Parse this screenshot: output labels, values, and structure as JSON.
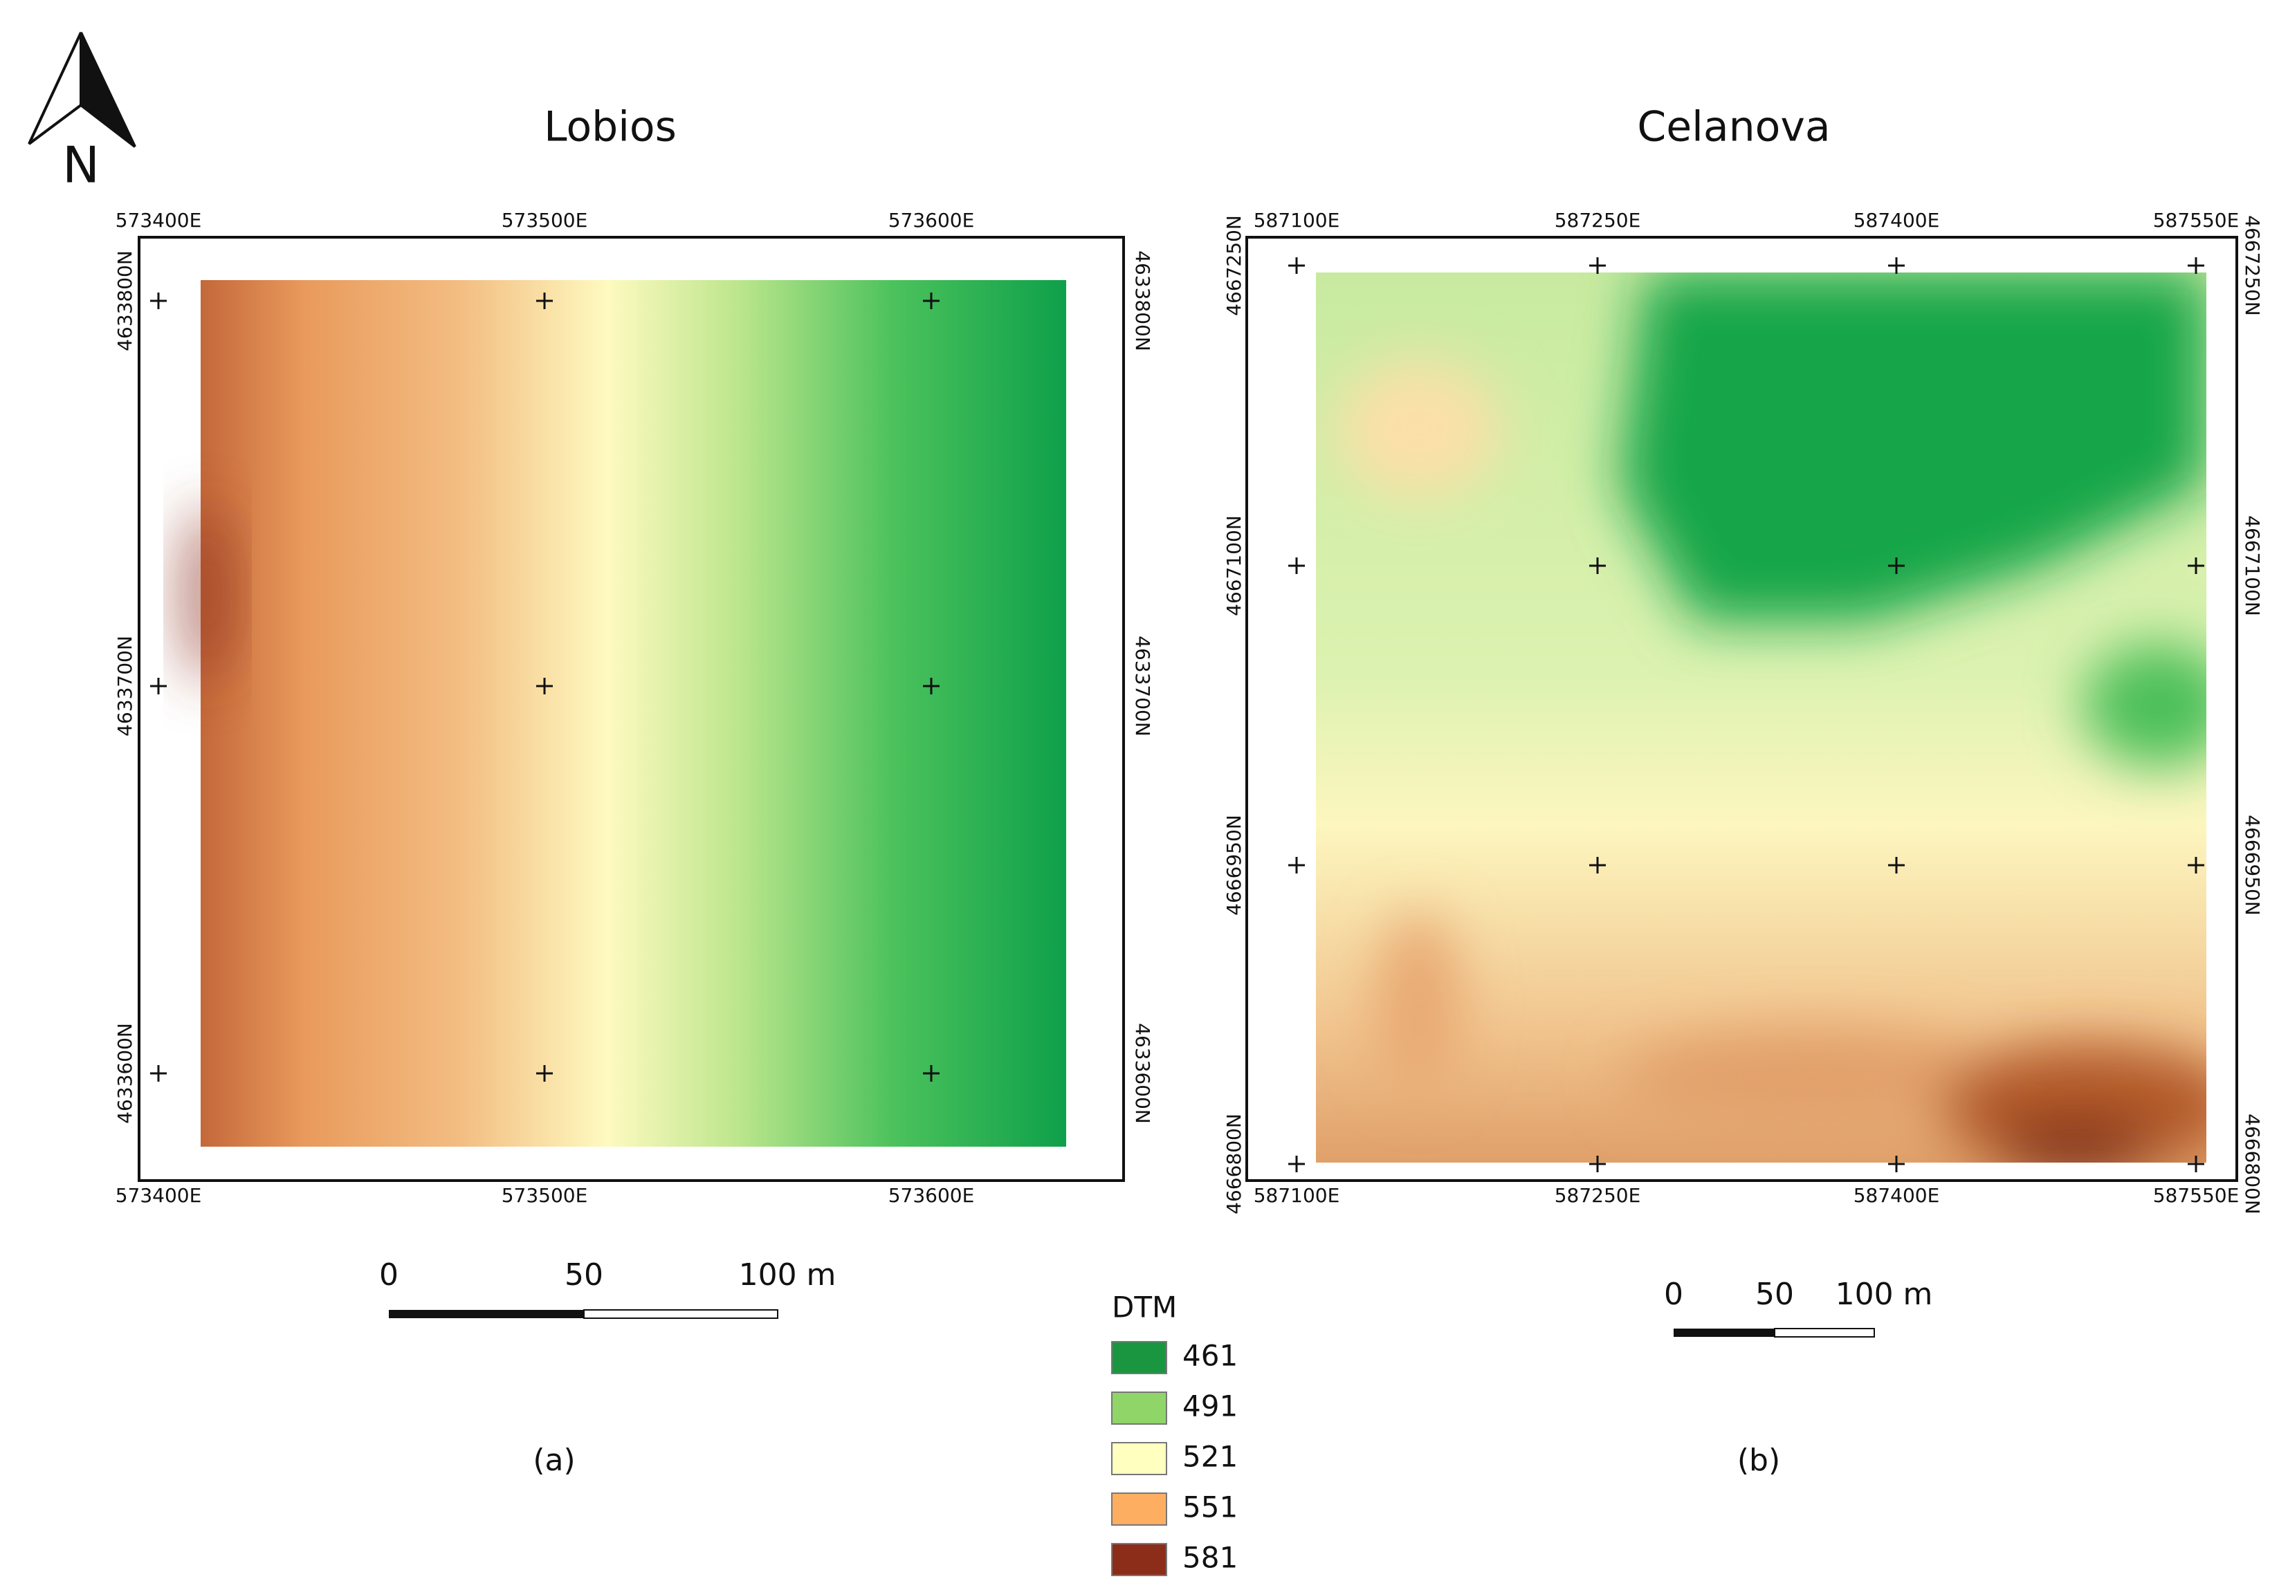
{
  "north_arrow": {
    "label": "N"
  },
  "panels": [
    {
      "title": "Lobios",
      "caption": "(a)",
      "x_labels": [
        "573400E",
        "573500E",
        "573600E"
      ],
      "y_labels": [
        "4633800N",
        "4633700N",
        "4633600N"
      ],
      "scale_bar": [
        "0",
        "50",
        "100 m"
      ]
    },
    {
      "title": "Celanova",
      "caption": "(b)",
      "x_labels": [
        "587100E",
        "587250E",
        "587400E",
        "587550E"
      ],
      "y_labels": [
        "4667250N",
        "4667100N",
        "4666950N",
        "4666800N"
      ],
      "scale_bar": [
        "0",
        "50",
        "100 m"
      ]
    }
  ],
  "legend": {
    "title": "DTM",
    "items": [
      {
        "label": "461",
        "color": "#1a9641"
      },
      {
        "label": "491",
        "color": "#8fd567"
      },
      {
        "label": "521",
        "color": "#ffffc0"
      },
      {
        "label": "551",
        "color": "#fdae61"
      },
      {
        "label": "581",
        "color": "#8c2d1a"
      }
    ]
  }
}
